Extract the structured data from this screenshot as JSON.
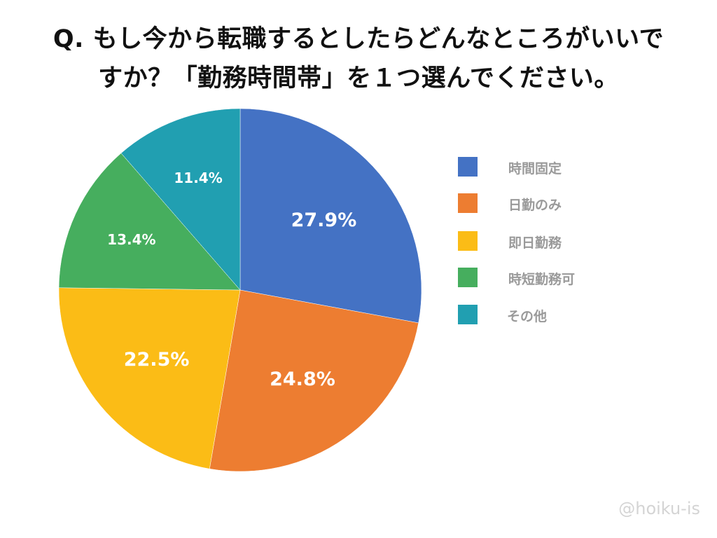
{
  "title_line1": "Q. もし今から転職するとしたらどんなところがいいで",
  "title_line2": "すか？「勤務時間帯」を１つ選んでください。",
  "watermark": "@hoiku-is",
  "chart_data": {
    "type": "pie",
    "title": "Q. もし今から転職するとしたらどんなところがいいですか？「勤務時間帯」を１つ選んでください。",
    "start": "top",
    "direction": "clockwise",
    "legend_position": "right",
    "slices": [
      {
        "label": "時間固定",
        "value": 27.9,
        "display": "27.9%",
        "color": "#4472C4"
      },
      {
        "label": "日勤のみ",
        "value": 24.8,
        "display": "24.8%",
        "color": "#ED7D31"
      },
      {
        "label": "即日勤務",
        "value": 22.5,
        "display": "22.5%",
        "color": "#FBBC16"
      },
      {
        "label": "時短勤務可",
        "value": 13.4,
        "display": "13.4%",
        "color": "#46AE5E"
      },
      {
        "label": "その他",
        "value": 11.4,
        "display": "11.4%",
        "color": "#219FB1"
      }
    ]
  }
}
